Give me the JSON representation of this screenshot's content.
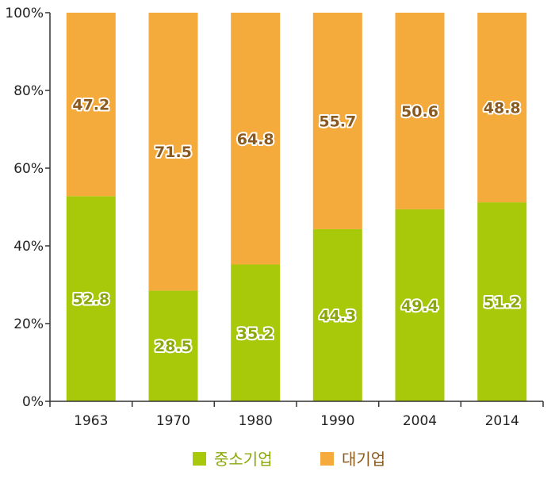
{
  "chart_data": {
    "type": "bar",
    "stacked": true,
    "categories": [
      "1963",
      "1970",
      "1980",
      "1990",
      "2004",
      "2014"
    ],
    "series": [
      {
        "name": "중소기업",
        "values": [
          52.8,
          28.5,
          35.2,
          44.3,
          49.4,
          51.2
        ],
        "color": "#a8c90a",
        "label_color": "#8aa80a"
      },
      {
        "name": "대기업",
        "values": [
          47.2,
          71.5,
          64.8,
          55.7,
          50.6,
          48.8
        ],
        "color": "#f5aa3c",
        "label_color": "#8a5a1e"
      }
    ],
    "y_ticks": [
      "0%",
      "20%",
      "40%",
      "60%",
      "80%",
      "100%"
    ],
    "ylim": [
      0,
      100
    ],
    "legend_position": "bottom",
    "grid": false
  }
}
